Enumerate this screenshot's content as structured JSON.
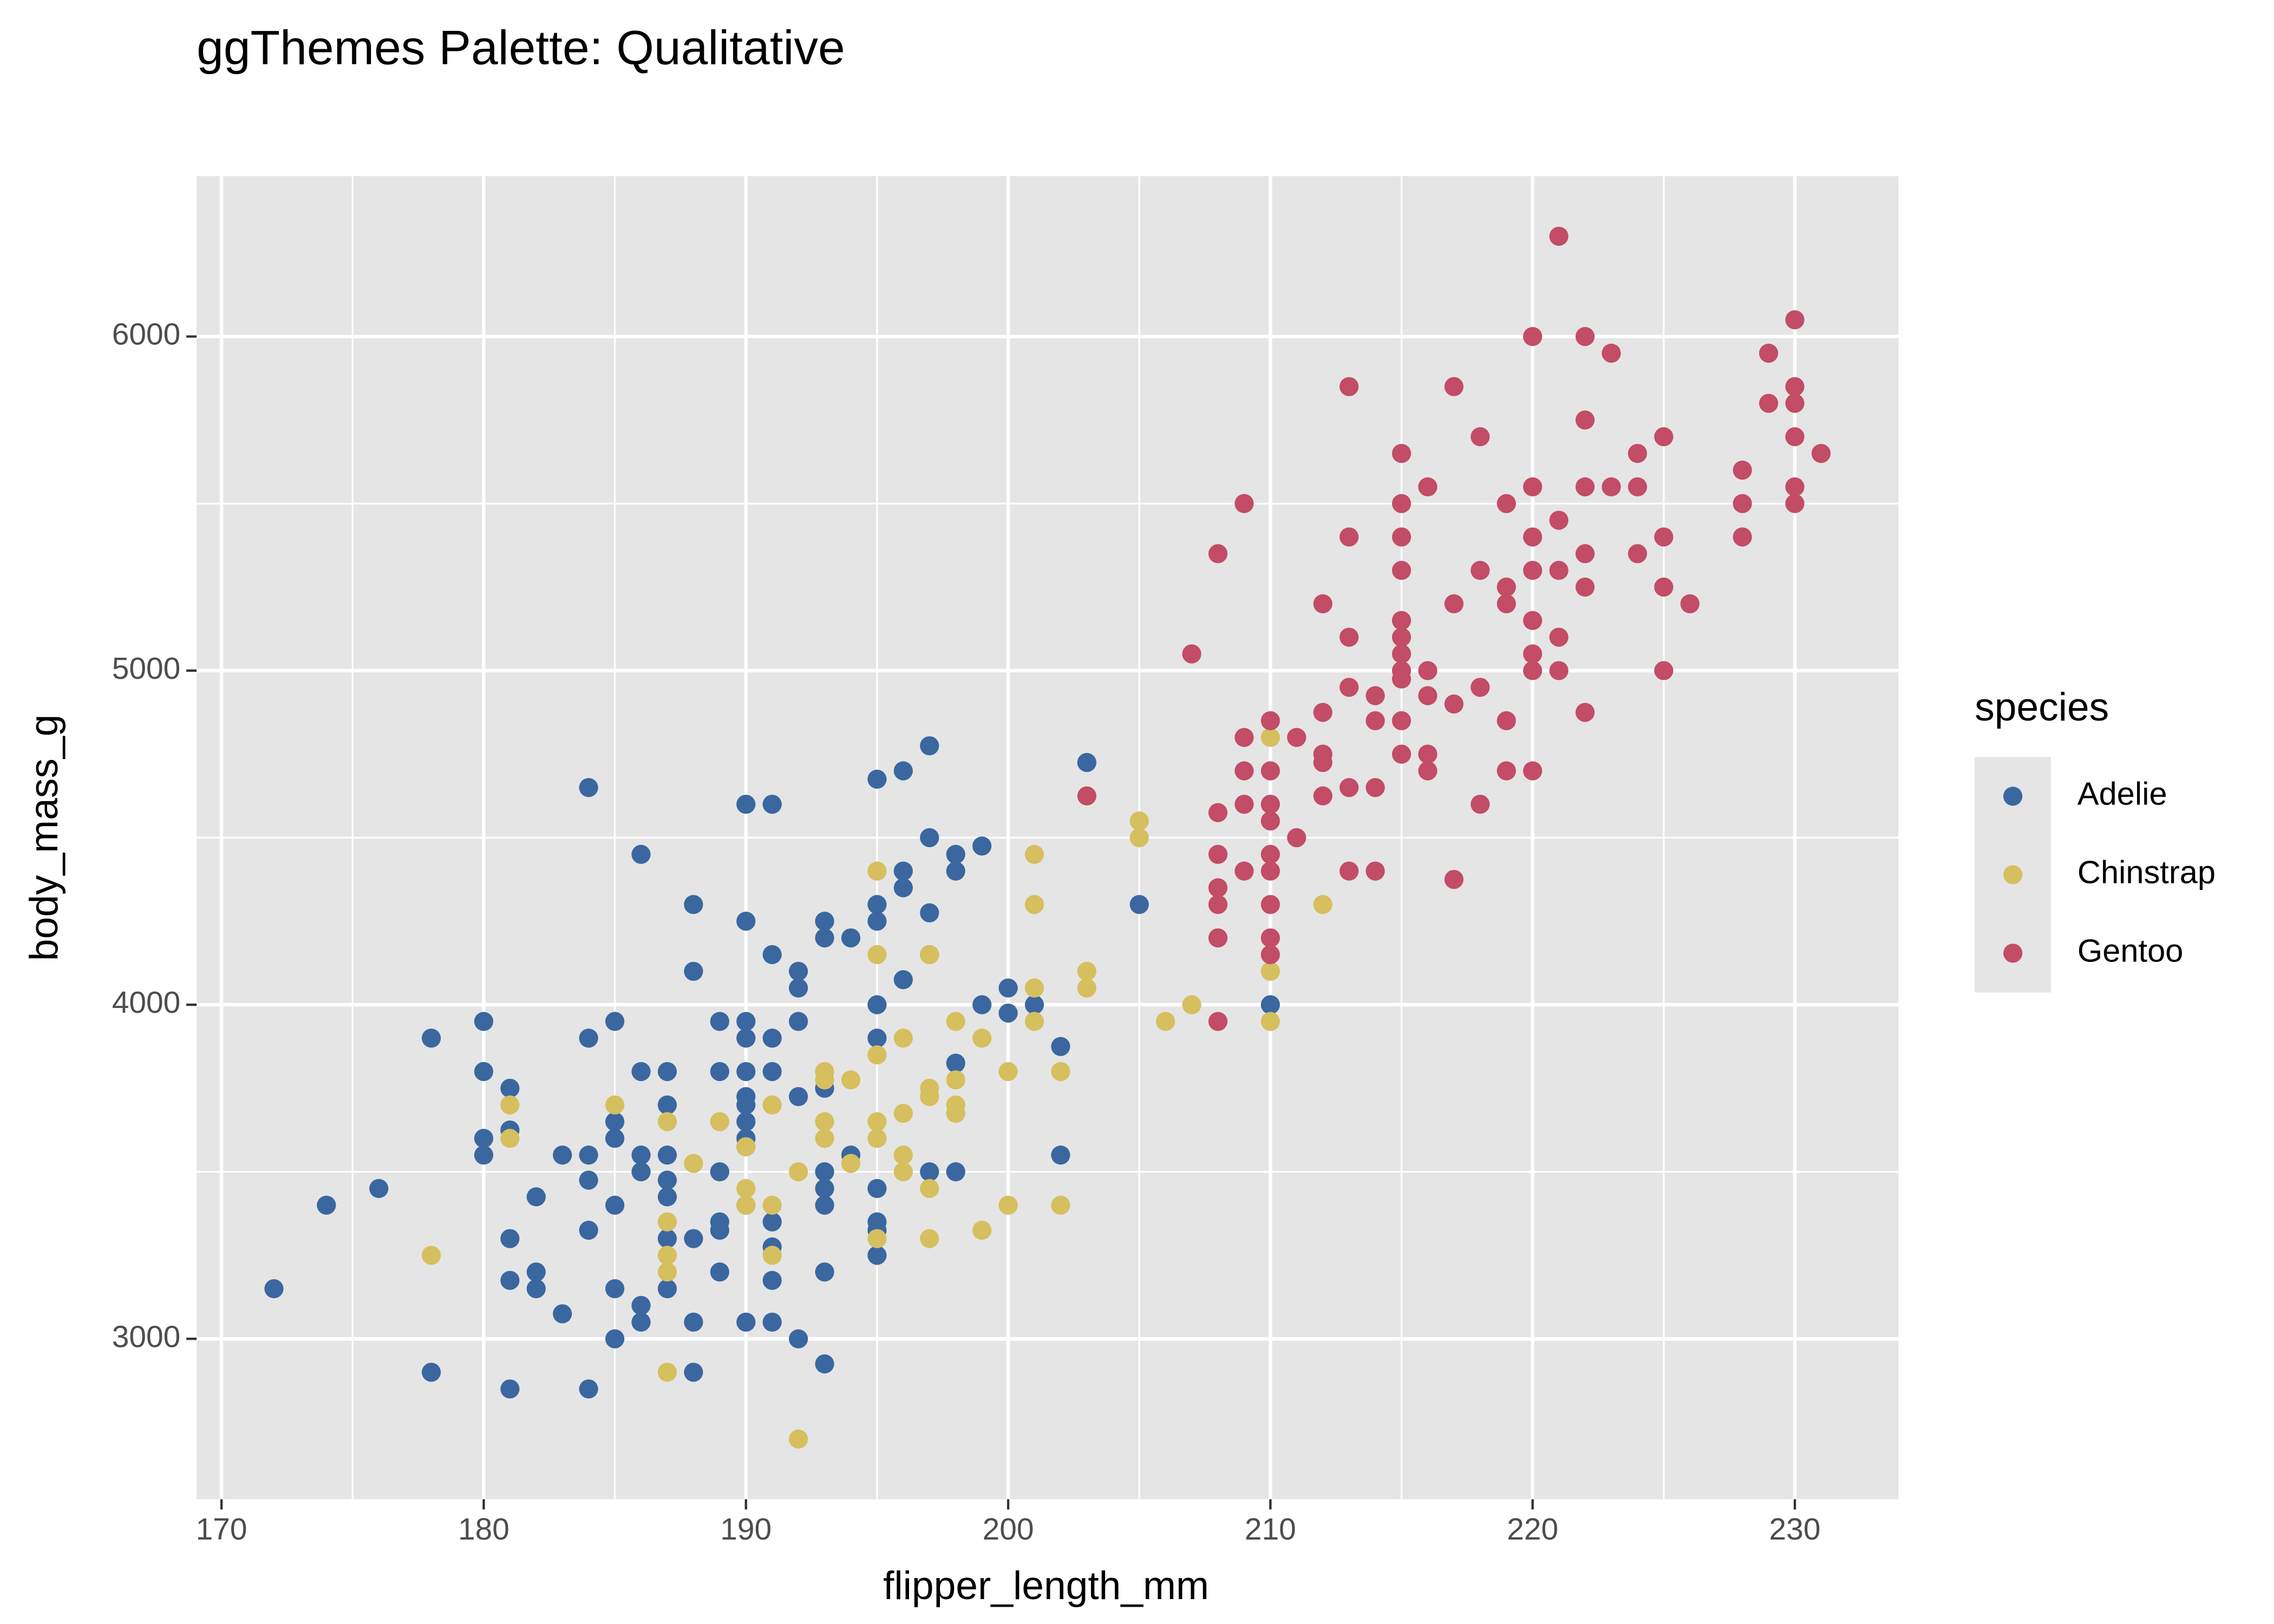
{
  "chart_data": {
    "type": "scatter",
    "title": "ggThemes Palette: Qualitative",
    "x_label": "flipper_length_mm",
    "y_label": "body_mass_g",
    "legend_title": "species",
    "legend_position": "right",
    "grid": true,
    "xlim": [
      169.05,
      233.95
    ],
    "ylim": [
      2520,
      6480
    ],
    "xticks": [
      170,
      180,
      190,
      200,
      210,
      220,
      230
    ],
    "yticks": [
      3000,
      4000,
      5000,
      6000
    ],
    "x_minor_ticks": [
      175,
      185,
      195,
      205,
      215,
      225
    ],
    "y_minor_ticks": [
      3500,
      4500,
      5500
    ],
    "series": [
      {
        "name": "Adelie",
        "color": "#3a67a0",
        "x": [
          172,
          174,
          176,
          178,
          178,
          180,
          180,
          180,
          180,
          181,
          181,
          181,
          181,
          181,
          182,
          182,
          182,
          183,
          183,
          184,
          184,
          184,
          184,
          184,
          184,
          185,
          185,
          185,
          185,
          185,
          185,
          186,
          186,
          186,
          186,
          186,
          186,
          187,
          187,
          187,
          187,
          187,
          187,
          187,
          188,
          188,
          188,
          188,
          188,
          189,
          189,
          189,
          189,
          189,
          189,
          190,
          190,
          190,
          190,
          190,
          190,
          190,
          190,
          190,
          190,
          190,
          190,
          191,
          191,
          191,
          191,
          191,
          191,
          191,
          191,
          192,
          192,
          192,
          192,
          192,
          193,
          193,
          193,
          193,
          193,
          193,
          193,
          193,
          194,
          194,
          195,
          195,
          195,
          195,
          195,
          195,
          195,
          195,
          195,
          196,
          196,
          196,
          196,
          197,
          197,
          197,
          197,
          197,
          198,
          198,
          198,
          198,
          199,
          199,
          200,
          200,
          201,
          202,
          202,
          203,
          205,
          210
        ],
        "values": [
          3150,
          3400,
          3450,
          3900,
          2900,
          3950,
          3800,
          3600,
          3550,
          3750,
          3625,
          3300,
          3175,
          2850,
          3200,
          3150,
          3425,
          3550,
          3075,
          4650,
          3900,
          3550,
          3475,
          3325,
          2850,
          3950,
          3650,
          3600,
          3400,
          3150,
          3000,
          4450,
          3800,
          3550,
          3500,
          3100,
          3050,
          3800,
          3700,
          3550,
          3475,
          3425,
          3300,
          3150,
          4300,
          4100,
          3300,
          3050,
          2900,
          3950,
          3800,
          3500,
          3350,
          3325,
          3200,
          4600,
          4250,
          3950,
          3900,
          3800,
          3725,
          3700,
          3650,
          3600,
          3575,
          3400,
          3050,
          4600,
          4150,
          3900,
          3800,
          3350,
          3275,
          3175,
          3050,
          4100,
          4050,
          3950,
          3725,
          3000,
          4250,
          4200,
          3750,
          3500,
          3450,
          3400,
          3200,
          2925,
          4200,
          3550,
          4675,
          4300,
          4250,
          4000,
          3900,
          3450,
          3350,
          3325,
          3250,
          4700,
          4400,
          4350,
          4075,
          4775,
          4500,
          4275,
          4150,
          3500,
          4450,
          4400,
          3825,
          3500,
          4475,
          4000,
          4050,
          3975,
          4000,
          3875,
          3550,
          4725,
          4300,
          4000
        ]
      },
      {
        "name": "Chinstrap",
        "color": "#d6bf5e",
        "x": [
          178,
          181,
          181,
          185,
          187,
          187,
          187,
          187,
          187,
          188,
          189,
          190,
          190,
          190,
          191,
          191,
          191,
          192,
          192,
          193,
          193,
          193,
          193,
          194,
          194,
          195,
          195,
          195,
          195,
          195,
          195,
          196,
          196,
          196,
          196,
          197,
          197,
          197,
          197,
          197,
          198,
          198,
          198,
          198,
          199,
          199,
          200,
          200,
          201,
          201,
          201,
          201,
          202,
          202,
          203,
          203,
          205,
          205,
          206,
          207,
          210,
          210,
          210,
          212
        ],
        "values": [
          3250,
          3700,
          3600,
          3700,
          3650,
          3350,
          3250,
          3200,
          2900,
          3525,
          3650,
          3575,
          3450,
          3400,
          3700,
          3400,
          3250,
          3500,
          2700,
          3800,
          3775,
          3650,
          3600,
          3775,
          3525,
          4400,
          4150,
          3850,
          3650,
          3600,
          3300,
          3900,
          3675,
          3550,
          3500,
          4150,
          3750,
          3725,
          3450,
          3300,
          3950,
          3775,
          3700,
          3675,
          3900,
          3325,
          3800,
          3400,
          4450,
          4300,
          4050,
          3950,
          3800,
          3400,
          4100,
          4050,
          4550,
          4500,
          3950,
          4000,
          4800,
          4100,
          3950,
          4300
        ]
      },
      {
        "name": "Gentoo",
        "color": "#c34c66",
        "x": [
          203,
          207,
          208,
          208,
          208,
          208,
          208,
          208,
          208,
          209,
          209,
          209,
          209,
          209,
          210,
          210,
          210,
          210,
          210,
          210,
          210,
          210,
          210,
          211,
          211,
          212,
          212,
          212,
          212,
          212,
          213,
          213,
          213,
          213,
          213,
          213,
          214,
          214,
          214,
          214,
          215,
          215,
          215,
          215,
          215,
          215,
          215,
          215,
          215,
          215,
          215,
          216,
          216,
          216,
          216,
          216,
          217,
          217,
          217,
          217,
          218,
          218,
          218,
          218,
          219,
          219,
          219,
          219,
          219,
          220,
          220,
          220,
          220,
          220,
          220,
          220,
          220,
          221,
          221,
          221,
          221,
          221,
          222,
          222,
          222,
          222,
          222,
          222,
          223,
          223,
          224,
          224,
          224,
          225,
          225,
          225,
          225,
          226,
          228,
          228,
          228,
          229,
          229,
          230,
          230,
          230,
          230,
          230,
          230,
          231
        ],
        "values": [
          4625,
          5050,
          5350,
          4575,
          4450,
          4350,
          4300,
          4200,
          3950,
          5500,
          4800,
          4700,
          4600,
          4400,
          4850,
          4700,
          4600,
          4550,
          4450,
          4400,
          4300,
          4200,
          4150,
          4800,
          4500,
          5200,
          4875,
          4750,
          4725,
          4625,
          5850,
          5400,
          5100,
          4950,
          4650,
          4400,
          4925,
          4850,
          4650,
          4400,
          5650,
          5500,
          5400,
          5300,
          5150,
          5100,
          5050,
          5000,
          4975,
          4850,
          4750,
          5550,
          5000,
          4925,
          4750,
          4700,
          5850,
          5200,
          4900,
          4375,
          5700,
          5300,
          4950,
          4600,
          5500,
          5250,
          5200,
          4850,
          4700,
          6000,
          5550,
          5400,
          5300,
          5150,
          5050,
          5000,
          4700,
          6300,
          5450,
          5300,
          5100,
          5000,
          6000,
          5750,
          5550,
          5350,
          5250,
          4875,
          5950,
          5550,
          5650,
          5550,
          5350,
          5700,
          5400,
          5250,
          5000,
          5200,
          5600,
          5500,
          5400,
          5950,
          5800,
          6050,
          5850,
          5800,
          5700,
          5550,
          5500,
          5650
        ]
      }
    ]
  }
}
